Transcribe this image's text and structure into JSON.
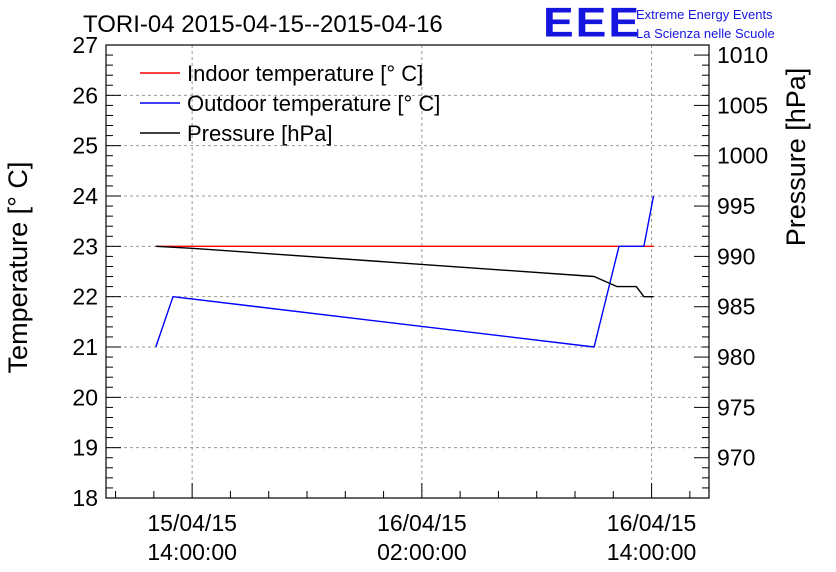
{
  "chart_data": {
    "type": "line",
    "title": "TORI-04 2015-04-15--2015-04-16",
    "ylabel": "Temperature [° C]",
    "y2label": "Pressure [hPa]",
    "ylim": [
      18,
      27
    ],
    "y2lim": [
      966,
      1011
    ],
    "yticks": [
      "18",
      "19",
      "20",
      "21",
      "22",
      "23",
      "24",
      "25",
      "26",
      "27"
    ],
    "y2ticks": [
      "970",
      "975",
      "980",
      "985",
      "990",
      "995",
      "1000",
      "1005",
      "1010"
    ],
    "x_ticks": [
      {
        "x": 0,
        "line1": "15/04/15",
        "line2": "14:00:00"
      },
      {
        "x": 12,
        "line1": "16/04/15",
        "line2": "02:00:00"
      },
      {
        "x": 24,
        "line1": "16/04/15",
        "line2": "14:00:00"
      }
    ],
    "xlim": [
      -4.5,
      27
    ],
    "grid": true,
    "legend_position": "top-left",
    "series": [
      {
        "name": "Indoor temperature [° C]",
        "axis": "left",
        "color": "#ff0000",
        "x": [
          -1.9,
          24.1
        ],
        "y": [
          23,
          23
        ]
      },
      {
        "name": "Outdoor temperature [° C]",
        "axis": "left",
        "color": "#0000ff",
        "x": [
          -1.9,
          -1,
          21,
          22.3,
          23.6,
          24.1
        ],
        "y": [
          21,
          22,
          21,
          23,
          23,
          24
        ]
      },
      {
        "name": "Pressure [hPa]",
        "axis": "right",
        "color": "#000000",
        "x": [
          -1.9,
          0,
          21,
          22.2,
          23.2,
          23.6,
          24.1
        ],
        "y": [
          991,
          990.8,
          988,
          987,
          987,
          986,
          986
        ]
      }
    ]
  },
  "logo": {
    "mark": "EEE",
    "line1": "Extreme Energy Events",
    "line2": "La Scienza nelle Scuole"
  }
}
